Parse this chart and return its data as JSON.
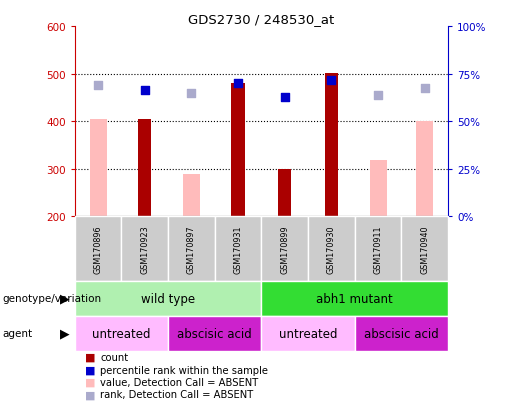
{
  "title": "GDS2730 / 248530_at",
  "samples": [
    "GSM170896",
    "GSM170923",
    "GSM170897",
    "GSM170931",
    "GSM170899",
    "GSM170930",
    "GSM170911",
    "GSM170940"
  ],
  "ylim_left": [
    200,
    600
  ],
  "ylim_right": [
    0,
    100
  ],
  "yticks_left": [
    200,
    300,
    400,
    500,
    600
  ],
  "yticks_right": [
    0,
    25,
    50,
    75,
    100
  ],
  "red_bars": [
    null,
    405,
    null,
    480,
    300,
    502,
    null,
    null
  ],
  "pink_bars": [
    405,
    null,
    290,
    null,
    null,
    null,
    318,
    400
  ],
  "blue_squares": [
    null,
    465,
    null,
    480,
    450,
    487,
    null,
    null
  ],
  "light_blue_squares": [
    475,
    null,
    460,
    null,
    null,
    null,
    455,
    470
  ],
  "genotype_groups": [
    {
      "label": "wild type",
      "start": 0,
      "end": 4,
      "color": "#b0f0b0"
    },
    {
      "label": "abh1 mutant",
      "start": 4,
      "end": 8,
      "color": "#33dd33"
    }
  ],
  "agent_groups": [
    {
      "label": "untreated",
      "start": 0,
      "end": 2,
      "color": "#ffbbff"
    },
    {
      "label": "abscisic acid",
      "start": 2,
      "end": 4,
      "color": "#cc22cc"
    },
    {
      "label": "untreated",
      "start": 4,
      "end": 6,
      "color": "#ffbbff"
    },
    {
      "label": "abscisic acid",
      "start": 6,
      "end": 8,
      "color": "#cc22cc"
    }
  ],
  "legend_items": [
    {
      "label": "count",
      "color": "#aa0000"
    },
    {
      "label": "percentile rank within the sample",
      "color": "#0000cc"
    },
    {
      "label": "value, Detection Call = ABSENT",
      "color": "#ffbbbb"
    },
    {
      "label": "rank, Detection Call = ABSENT",
      "color": "#aaaacc"
    }
  ],
  "left_axis_color": "#cc0000",
  "right_axis_color": "#0000cc",
  "bar_width": 0.28,
  "square_size": 28,
  "background_color": "#ffffff"
}
